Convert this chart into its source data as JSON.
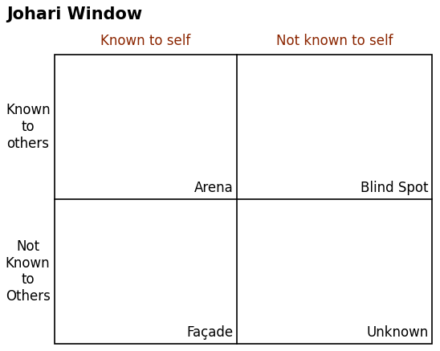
{
  "title": "Johari Window",
  "title_color": "#000000",
  "title_fontsize": 15,
  "title_fontweight": "bold",
  "col_labels": [
    "Known to self",
    "Not known to self"
  ],
  "col_label_color": "#8B2500",
  "col_label_fontsize": 12,
  "row_labels": [
    "Known\nto\nothers",
    "Not\nKnown\nto\nOthers"
  ],
  "row_label_color": "#000000",
  "row_label_fontsize": 12,
  "cell_labels": [
    "Arena",
    "Blind Spot",
    "Façade",
    "Unknown"
  ],
  "cell_label_color": "#000000",
  "cell_label_fontsize": 12,
  "grid_color": "#000000",
  "background_color": "#ffffff",
  "fig_width": 5.48,
  "fig_height": 4.37,
  "dpi": 100
}
